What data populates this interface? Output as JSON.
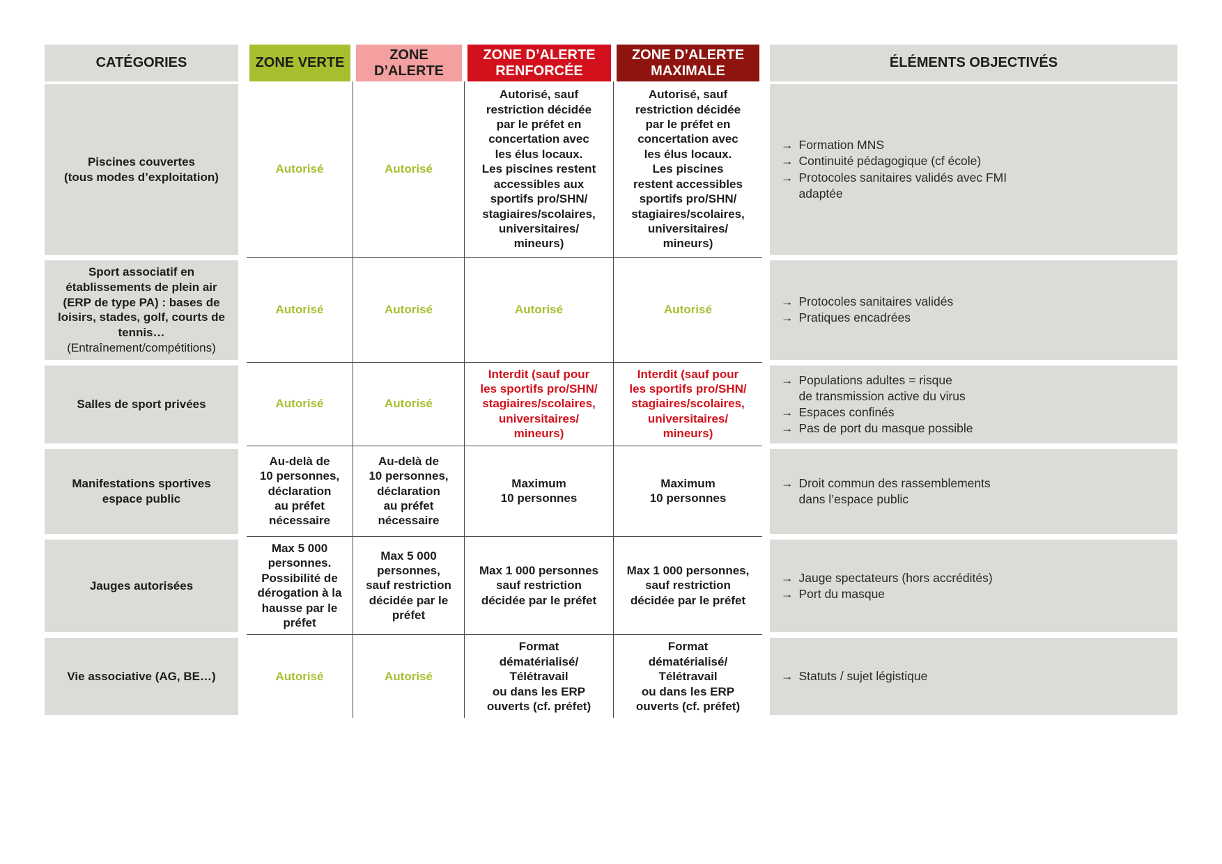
{
  "table": {
    "headers": [
      {
        "label": "CATÉGORIES"
      },
      {
        "label": "ZONE VERTE"
      },
      {
        "label": "ZONE D’ALERTE"
      },
      {
        "label": "ZONE D’ALERTE RENFORCÉE"
      },
      {
        "label": "ZONE D’ALERTE MAXIMALE"
      },
      {
        "label": "ÉLÉMENTS OBJECTIVÉS"
      }
    ],
    "rows": [
      {
        "category": "Piscines couvertes\n(tous modes d’exploitation)",
        "category_sub": "",
        "zones": [
          {
            "text": "Autorisé",
            "color": "green"
          },
          {
            "text": "Autorisé",
            "color": "green"
          },
          {
            "text": "Autorisé, sauf\nrestriction décidée\npar le préfet en\nconcertation avec\nles élus locaux.\nLes piscines restent\naccessibles aux\nsportifs pro/SHN/\nstagiaires/scolaires,\nuniversitaires/\nmineurs)",
            "color": "black"
          },
          {
            "text": "Autorisé, sauf\nrestriction décidée\npar le préfet en\nconcertation avec\nles élus locaux.\nLes piscines\nrestent accessibles\nsportifs pro/SHN/\nstagiaires/scolaires,\nuniversitaires/\nmineurs)",
            "color": "black"
          }
        ],
        "elements": [
          "Formation MNS",
          "Continuité pédagogique (cf école)",
          "Protocoles sanitaires validés avec FMI\nadaptée"
        ]
      },
      {
        "category": "Sport associatif en\nétablissements de plein air\n(ERP de type PA) : bases de\nloisirs, stades, golf, courts de\ntennis…",
        "category_sub": "(Entraînement/compétitions)",
        "zones": [
          {
            "text": "Autorisé",
            "color": "green"
          },
          {
            "text": "Autorisé",
            "color": "green"
          },
          {
            "text": "Autorisé",
            "color": "green"
          },
          {
            "text": "Autorisé",
            "color": "green"
          }
        ],
        "elements": [
          "Protocoles sanitaires validés",
          "Pratiques encadrées"
        ]
      },
      {
        "category": "Salles de sport privées",
        "category_sub": "",
        "zones": [
          {
            "text": "Autorisé",
            "color": "green"
          },
          {
            "text": "Autorisé",
            "color": "green"
          },
          {
            "text": "Interdit (sauf pour\nles sportifs pro/SHN/\nstagiaires/scolaires,\nuniversitaires/\nmineurs)",
            "color": "red"
          },
          {
            "text": "Interdit (sauf pour\nles sportifs pro/SHN/\nstagiaires/scolaires,\nuniversitaires/\nmineurs)",
            "color": "red"
          }
        ],
        "elements": [
          "Populations adultes = risque\nde transmission active du virus",
          "Espaces confinés",
          "Pas de port du masque possible"
        ]
      },
      {
        "category": "Manifestations sportives\nespace public",
        "category_sub": "",
        "zones": [
          {
            "text": "Au-delà de\n10 personnes,\ndéclaration\nau préfet\nnécessaire",
            "color": "black"
          },
          {
            "text": "Au-delà de\n10 personnes,\ndéclaration\nau préfet\nnécessaire",
            "color": "black"
          },
          {
            "text": "Maximum\n10 personnes",
            "color": "black"
          },
          {
            "text": "Maximum\n10 personnes",
            "color": "black"
          }
        ],
        "elements": [
          "Droit commun des rassemblements\ndans l’espace public"
        ]
      },
      {
        "category": "Jauges autorisées",
        "category_sub": "",
        "zones": [
          {
            "text": "Max 5 000\npersonnes.\nPossibilité de\ndérogation à la\nhausse par le\npréfet",
            "color": "black"
          },
          {
            "text": "Max 5 000\npersonnes,\nsauf restriction\ndécidée par le\npréfet",
            "color": "black"
          },
          {
            "text": "Max 1 000 personnes\nsauf restriction\ndécidée par le préfet",
            "color": "black"
          },
          {
            "text": "Max 1 000 personnes,\nsauf restriction\ndécidée par le préfet",
            "color": "black"
          }
        ],
        "elements": [
          "Jauge spectateurs (hors accrédités)",
          "Port du masque"
        ]
      },
      {
        "category": "Vie associative (AG, BE…)",
        "category_sub": "",
        "zones": [
          {
            "text": "Autorisé",
            "color": "green"
          },
          {
            "text": "Autorisé",
            "color": "green"
          },
          {
            "text": "Format\ndématérialisé/\nTélétravail\nou dans les ERP\nouverts (cf. préfet)",
            "color": "black"
          },
          {
            "text": "Format\ndématérialisé/\nTélétravail\nou dans les ERP\nouverts (cf. préfet)",
            "color": "black"
          }
        ],
        "elements": [
          "Statuts / sujet légistique"
        ]
      }
    ]
  },
  "colors": {
    "gray": "#dcdbd8",
    "green": "#a6bf2f",
    "pink": "#f4a0a0",
    "red": "#d2111c",
    "darkred": "#8e1410",
    "border": "#4a4a4a"
  },
  "icons": {
    "bullet_arrow": "→"
  }
}
